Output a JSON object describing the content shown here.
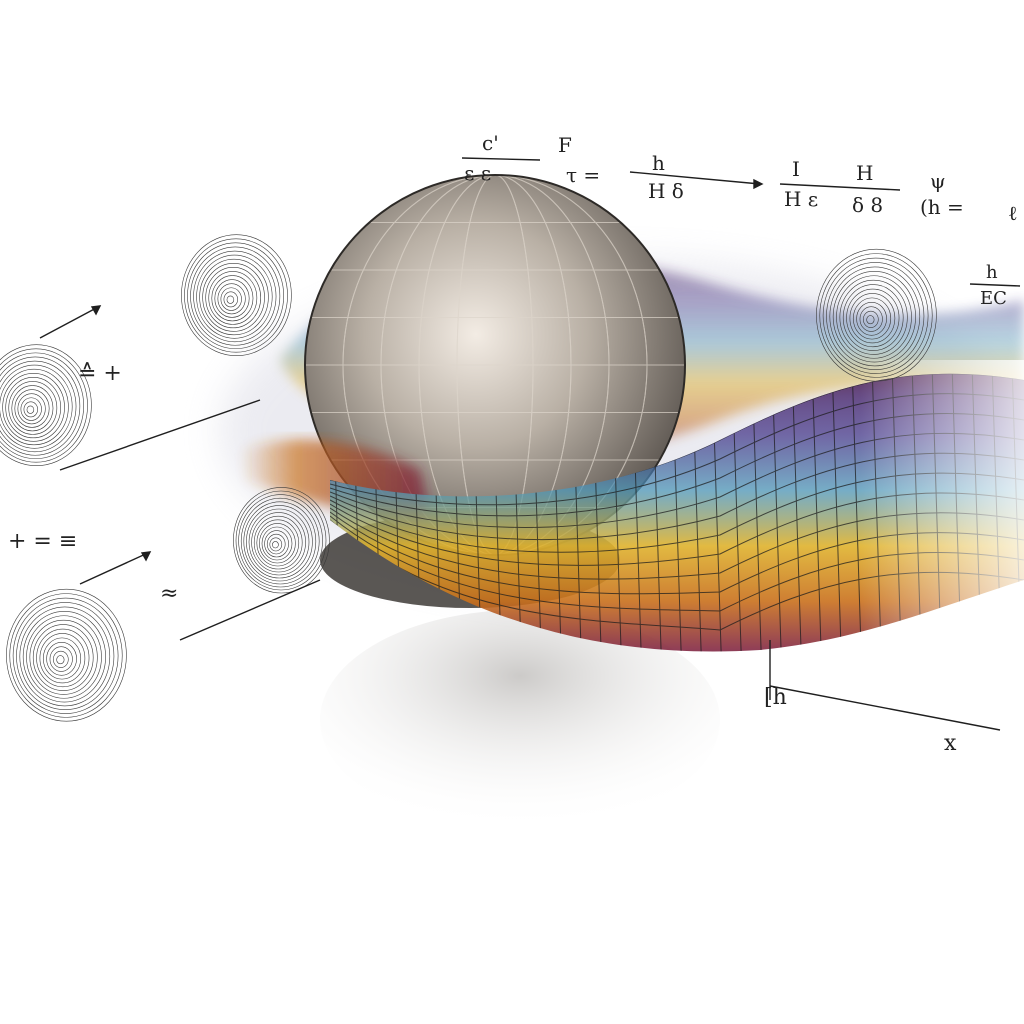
{
  "scene": {
    "background_color": "#ffffff",
    "sphere": {
      "fill_light": "#f3ece4",
      "fill_mid": "#a39a90",
      "fill_dark": "#4f4944",
      "grid_color": "#d8d0c6"
    },
    "ribbon": {
      "colors": [
        "#4a1d5c",
        "#3c2e84",
        "#2a5f96",
        "#4f98b8",
        "#e1b42e",
        "#c9701c",
        "#7a1a3a"
      ],
      "grid_color": "#1e1e1e"
    },
    "spiral_color": "#3a3a3a",
    "ink_color": "#1f1f1f"
  },
  "glyphs": {
    "top_row": [
      "c'",
      "ε ε",
      "F",
      "τ =",
      "h",
      "H δ",
      "I",
      "H ε",
      "H",
      "δ 8",
      "ψ",
      "(h =",
      "ℓ"
    ],
    "right_row": [
      "h",
      "EC"
    ],
    "left_row": [
      "≙ +",
      "+ = ≡",
      "≈"
    ],
    "lower_right": [
      "[h",
      "x"
    ]
  }
}
